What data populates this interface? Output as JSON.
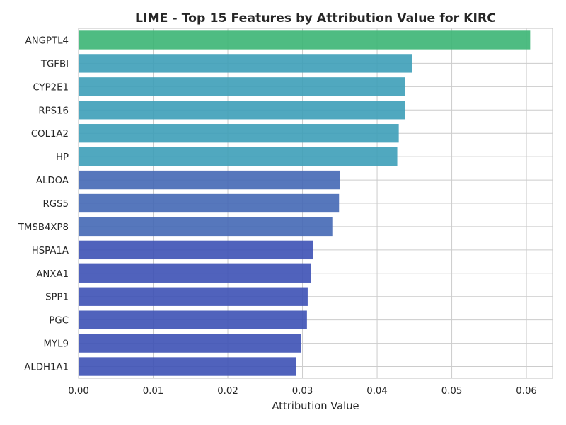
{
  "chart_data": {
    "type": "bar",
    "orientation": "horizontal",
    "title": "LIME - Top 15 Features by Attribution Value for KIRC",
    "xlabel": "Attribution Value",
    "ylabel": "",
    "xlim": [
      0,
      0.0635
    ],
    "xticks": [
      "0.00",
      "0.01",
      "0.02",
      "0.03",
      "0.04",
      "0.05",
      "0.06"
    ],
    "grid": true,
    "categories": [
      "ANGPTL4",
      "TGFBI",
      "CYP2E1",
      "RPS16",
      "COL1A2",
      "HP",
      "ALDOA",
      "RGS5",
      "TMSB4XP8",
      "HSPA1A",
      "ANXA1",
      "SPP1",
      "PGC",
      "MYL9",
      "ALDH1A1"
    ],
    "values": [
      0.0605,
      0.0447,
      0.0437,
      0.0437,
      0.0429,
      0.0427,
      0.035,
      0.0349,
      0.034,
      0.0314,
      0.0311,
      0.0307,
      0.0306,
      0.0298,
      0.0291
    ],
    "colors": [
      "#3bb574",
      "#3d9fb8",
      "#3d9fb8",
      "#3d9fb8",
      "#3d9fb8",
      "#3d9fb8",
      "#4468b5",
      "#4468b5",
      "#4468b5",
      "#3d51b5",
      "#3d51b5",
      "#3d51b5",
      "#3d51b5",
      "#3d51b5",
      "#3d51b5"
    ]
  }
}
